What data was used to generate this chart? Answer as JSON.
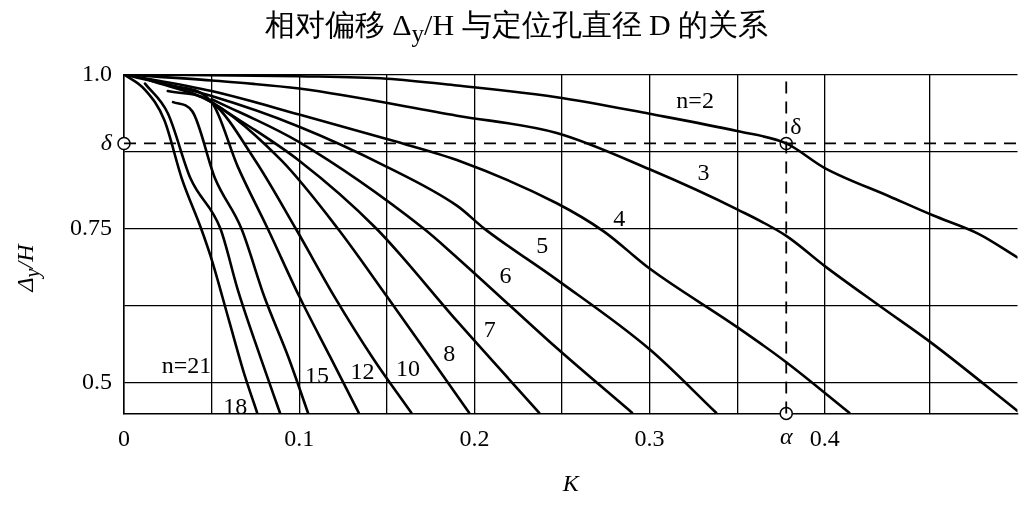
{
  "chart_data": {
    "type": "line",
    "title": "相对偏移 Δ$_{y}$/H 与定位孔直径 D 的关系",
    "xlabel": "K",
    "ylabel": "Δ$_{y}$/H",
    "xlim": [
      0,
      0.51
    ],
    "ylim": [
      0.45,
      1.0
    ],
    "xticks": [
      0,
      {
        "value": 0.05,
        "label": null
      },
      0.1,
      {
        "value": 0.15,
        "label": null
      },
      0.2,
      {
        "value": 0.25,
        "label": null
      },
      0.3,
      {
        "value": 0.35,
        "label": null
      },
      0.4,
      {
        "value": 0.46,
        "label": null
      }
    ],
    "yticks": [
      0.5,
      {
        "value": 0.625,
        "label": null
      },
      0.75,
      {
        "value": 0.875,
        "label": null
      },
      {
        "value": 1.0,
        "label": "1.0"
      }
    ],
    "grid": true,
    "legend": false,
    "marker": "none",
    "line_style": "solid",
    "ref_lines": [
      {
        "axis": "y",
        "value": 0.888,
        "label": "δ",
        "line_style": "dashed"
      },
      {
        "axis": "x",
        "value": 0.378,
        "label": "α",
        "line_style": "dashed"
      }
    ],
    "series": [
      {
        "color": "#000000",
        "x": [
          0,
          0.1,
          0.15,
          0.19,
          0.247,
          0.3,
          0.35,
          0.378,
          0.4,
          0.437,
          0.462,
          0.488,
          0.51
        ],
        "values": [
          1,
          0.997,
          0.993,
          0.982,
          0.963,
          0.936,
          0.908,
          0.888,
          0.848,
          0.802,
          0.771,
          0.741,
          0.703
        ]
      },
      {
        "color": "#000000",
        "x": [
          0,
          0.05,
          0.1,
          0.19,
          0.247,
          0.3,
          0.35,
          0.378,
          0.4,
          0.432,
          0.462,
          0.51
        ],
        "values": [
          1,
          0.99,
          0.977,
          0.933,
          0.905,
          0.846,
          0.781,
          0.738,
          0.689,
          0.623,
          0.562,
          0.454
        ]
      },
      {
        "color": "#000000",
        "x": [
          0,
          0.05,
          0.1,
          0.15,
          0.19,
          0.247,
          0.274,
          0.3,
          0.35,
          0.378,
          0.414
        ],
        "values": [
          1,
          0.973,
          0.935,
          0.895,
          0.861,
          0.791,
          0.745,
          0.685,
          0.59,
          0.533,
          0.451
        ]
      },
      {
        "color": "#000000",
        "x": [
          0,
          0.05,
          0.1,
          0.15,
          0.19,
          0.206,
          0.247,
          0.3,
          0.338
        ],
        "values": [
          1,
          0.965,
          0.915,
          0.85,
          0.787,
          0.749,
          0.667,
          0.554,
          0.451
        ]
      },
      {
        "color": "#000000",
        "x": [
          0.05,
          0.1,
          0.171,
          0.19,
          0.221,
          0.247,
          0.29
        ],
        "values": [
          0.96,
          0.89,
          0.75,
          0.703,
          0.623,
          0.556,
          0.451
        ]
      },
      {
        "color": "#000000",
        "x": [
          0.05,
          0.1,
          0.144,
          0.19,
          0.237
        ],
        "values": [
          0.955,
          0.86,
          0.75,
          0.6,
          0.451
        ]
      },
      {
        "color": "#000000",
        "x": [
          0.015,
          0.05,
          0.09,
          0.122,
          0.15,
          0.175,
          0.197
        ],
        "values": [
          0.99,
          0.955,
          0.86,
          0.75,
          0.64,
          0.54,
          0.451
        ]
      },
      {
        "color": "#000000",
        "x": [
          0.025,
          0.05,
          0.075,
          0.098,
          0.12,
          0.142,
          0.164
        ],
        "values": [
          0.973,
          0.955,
          0.86,
          0.75,
          0.64,
          0.54,
          0.451
        ]
      },
      {
        "color": "#000000",
        "x": [
          0.026,
          0.05,
          0.065,
          0.082,
          0.1,
          0.118,
          0.134
        ],
        "values": [
          0.983,
          0.955,
          0.85,
          0.75,
          0.64,
          0.54,
          0.451
        ]
      },
      {
        "color": "#000000",
        "x": [
          0.028,
          0.039,
          0.052,
          0.067,
          0.08,
          0.094,
          0.105
        ],
        "values": [
          0.955,
          0.94,
          0.831,
          0.75,
          0.64,
          0.54,
          0.451
        ]
      },
      {
        "color": "#000000",
        "x": [
          0.012,
          0.025,
          0.038,
          0.055,
          0.065,
          0.078,
          0.089
        ],
        "values": [
          0.985,
          0.937,
          0.831,
          0.75,
          0.65,
          0.54,
          0.451
        ]
      },
      {
        "color": "#000000",
        "x": [
          0,
          0.012,
          0.023,
          0.033,
          0.044,
          0.05,
          0.06,
          0.068,
          0.076
        ],
        "values": [
          1,
          0.975,
          0.926,
          0.831,
          0.75,
          0.7,
          0.6,
          0.52,
          0.451
        ]
      },
      {
        "type": "scatter",
        "color": "#000000",
        "marker": "circle",
        "x": [
          0,
          0.378,
          0.378
        ],
        "values": [
          0.888,
          0.888,
          0.45
        ]
      }
    ],
    "annotations": [
      {
        "text": "n=2",
        "x": 0.313,
        "y": 0.929
      },
      {
        "text": "3",
        "x": 0.325,
        "y": 0.813
      },
      {
        "text": "4",
        "x": 0.277,
        "y": 0.738
      },
      {
        "text": "5",
        "x": 0.233,
        "y": 0.695
      },
      {
        "text": "6",
        "x": 0.212,
        "y": 0.646
      },
      {
        "text": "7",
        "x": 0.203,
        "y": 0.559
      },
      {
        "text": "8",
        "x": 0.18,
        "y": 0.52
      },
      {
        "text": "10",
        "x": 0.153,
        "y": 0.495
      },
      {
        "text": "12",
        "x": 0.127,
        "y": 0.49
      },
      {
        "text": "15",
        "x": 0.101,
        "y": 0.484
      },
      {
        "text": "18",
        "x": 0.0875,
        "y": 0.46
      },
      {
        "text": "n=21",
        "x": 0.067,
        "y": 0.526
      },
      {
        "text": "δ",
        "x": 0.378,
        "y": 0.888
      }
    ]
  }
}
